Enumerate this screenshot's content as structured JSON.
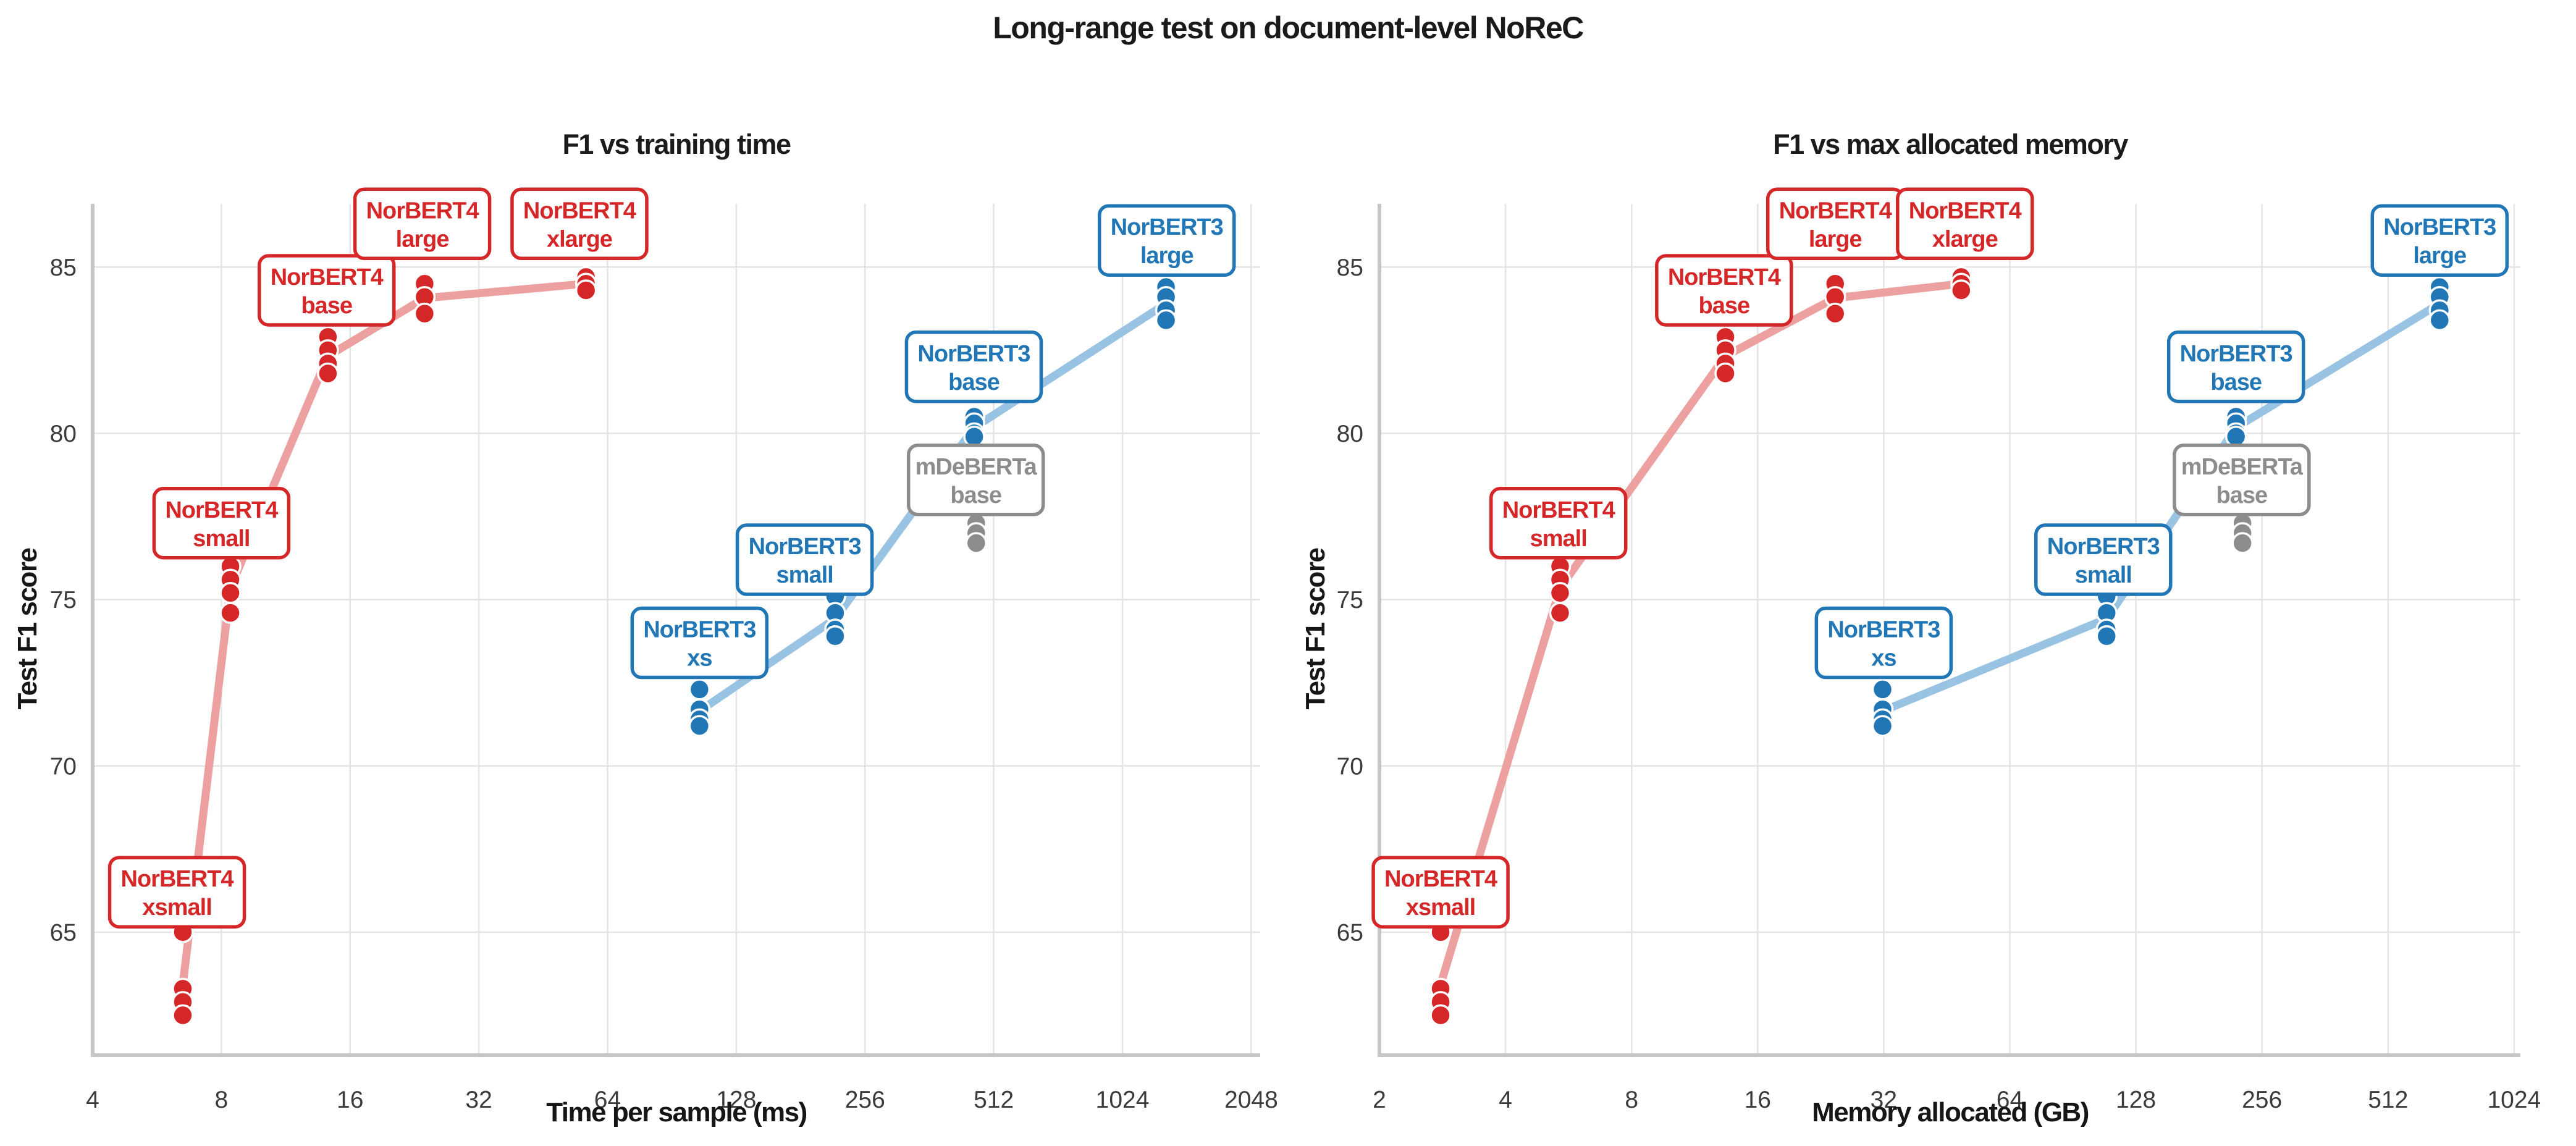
{
  "title": "Long-range test on document-level NoReC",
  "colors": {
    "norbert4": "#d62728",
    "norbert4_line": "#eda0a0",
    "norbert3": "#2176b5",
    "norbert3_line": "#99c3e2",
    "mdeberta": "#8c8c8c",
    "grid": "#e4e4e4",
    "spine": "#c6c6c6",
    "tick_text": "#3b3b3b",
    "title_text": "#1b1b1b",
    "background": "#ffffff"
  },
  "chart_data": [
    {
      "type": "scatter",
      "title": "F1 vs training time",
      "xlabel": "Time per sample (ms)",
      "ylabel": "Test F1 score",
      "x_scale": "log2",
      "x_range": [
        4,
        2150
      ],
      "y_range": [
        61.3,
        86.9
      ],
      "x_ticks": [
        4,
        8,
        16,
        32,
        64,
        128,
        256,
        512,
        1024,
        2048
      ],
      "y_ticks": [
        65,
        70,
        75,
        80,
        85
      ],
      "grid": true,
      "legend": "none",
      "series": [
        {
          "name": "NorBERT4",
          "color": "#d62728",
          "line_color": "#eda0a0",
          "connected": true,
          "clusters": [
            {
              "model": "NorBERT4 xsmall",
              "label": [
                "NorBERT4",
                "xsmall"
              ],
              "x": 6.5,
              "f1": [
                65.0,
                63.3,
                62.9,
                62.5
              ],
              "label_pos": [
                6.3,
                66.2
              ]
            },
            {
              "model": "NorBERT4 small",
              "label": [
                "NorBERT4",
                "small"
              ],
              "x": 8.4,
              "f1": [
                76.0,
                75.6,
                75.2,
                74.6
              ],
              "label_pos": [
                8.0,
                77.3
              ]
            },
            {
              "model": "NorBERT4 base",
              "label": [
                "NorBERT4",
                "base"
              ],
              "x": 14.2,
              "f1": [
                82.9,
                82.5,
                82.1,
                81.8
              ],
              "label_pos": [
                14.1,
                84.3
              ]
            },
            {
              "model": "NorBERT4 large",
              "label": [
                "NorBERT4",
                "large"
              ],
              "x": 23.9,
              "f1": [
                84.5,
                84.1,
                83.6
              ],
              "label_pos": [
                23.6,
                86.3
              ]
            },
            {
              "model": "NorBERT4 xlarge",
              "label": [
                "NorBERT4",
                "xlarge"
              ],
              "x": 57,
              "f1": [
                84.7,
                84.5,
                84.3
              ],
              "label_pos": [
                55,
                86.3
              ]
            }
          ]
        },
        {
          "name": "NorBERT3",
          "color": "#2176b5",
          "line_color": "#99c3e2",
          "connected": true,
          "clusters": [
            {
              "model": "NorBERT3 xs",
              "label": [
                "NorBERT3",
                "xs"
              ],
              "x": 105,
              "f1": [
                72.3,
                71.7,
                71.4,
                71.2
              ],
              "label_pos": [
                105,
                73.7
              ]
            },
            {
              "model": "NorBERT3 small",
              "label": [
                "NorBERT3",
                "small"
              ],
              "x": 218,
              "f1": [
                75.1,
                74.6,
                74.1,
                73.9
              ],
              "label_pos": [
                185,
                76.2
              ]
            },
            {
              "model": "NorBERT3 base",
              "label": [
                "NorBERT3",
                "base"
              ],
              "x": 461,
              "f1": [
                80.5,
                80.3,
                80.0,
                79.9
              ],
              "label_pos": [
                460,
                82.0
              ]
            },
            {
              "model": "NorBERT3 large",
              "label": [
                "NorBERT3",
                "large"
              ],
              "x": 1295,
              "f1": [
                84.4,
                84.1,
                83.7,
                83.4
              ],
              "label_pos": [
                1300,
                85.8
              ]
            }
          ]
        },
        {
          "name": "mDeBERTa",
          "color": "#8c8c8c",
          "line_color": "#8c8c8c",
          "connected": false,
          "clusters": [
            {
              "model": "mDeBERTa base",
              "label": [
                "mDeBERTa",
                "base"
              ],
              "x": 466,
              "f1": [
                77.3,
                77.0,
                76.7
              ],
              "label_pos": [
                465,
                78.6
              ]
            }
          ]
        }
      ]
    },
    {
      "type": "scatter",
      "title": "F1 vs max allocated memory",
      "xlabel": "Memory allocated (GB)",
      "ylabel": "Test F1 score",
      "x_scale": "log2",
      "x_range": [
        2,
        1060
      ],
      "y_range": [
        61.3,
        86.9
      ],
      "x_ticks": [
        2,
        4,
        8,
        16,
        32,
        64,
        128,
        256,
        512,
        1024
      ],
      "y_ticks": [
        65,
        70,
        75,
        80,
        85
      ],
      "grid": true,
      "legend": "none",
      "series": [
        {
          "name": "NorBERT4",
          "color": "#d62728",
          "line_color": "#eda0a0",
          "connected": true,
          "clusters": [
            {
              "model": "NorBERT4 xsmall",
              "label": [
                "NorBERT4",
                "xsmall"
              ],
              "x": 2.8,
              "f1": [
                65.0,
                63.3,
                62.9,
                62.5
              ],
              "label_pos": [
                2.8,
                66.2
              ]
            },
            {
              "model": "NorBERT4 small",
              "label": [
                "NorBERT4",
                "small"
              ],
              "x": 5.4,
              "f1": [
                76.0,
                75.6,
                75.2,
                74.6
              ],
              "label_pos": [
                5.35,
                77.3
              ]
            },
            {
              "model": "NorBERT4 base",
              "label": [
                "NorBERT4",
                "base"
              ],
              "x": 13.4,
              "f1": [
                82.9,
                82.5,
                82.1,
                81.8
              ],
              "label_pos": [
                13.3,
                84.3
              ]
            },
            {
              "model": "NorBERT4 large",
              "label": [
                "NorBERT4",
                "large"
              ],
              "x": 24.5,
              "f1": [
                84.5,
                84.1,
                83.6
              ],
              "label_pos": [
                24.5,
                86.3
              ]
            },
            {
              "model": "NorBERT4 xlarge",
              "label": [
                "NorBERT4",
                "xlarge"
              ],
              "x": 49,
              "f1": [
                84.7,
                84.5,
                84.3
              ],
              "label_pos": [
                50,
                86.3
              ]
            }
          ]
        },
        {
          "name": "NorBERT3",
          "color": "#2176b5",
          "line_color": "#99c3e2",
          "connected": true,
          "clusters": [
            {
              "model": "NorBERT3 xs",
              "label": [
                "NorBERT3",
                "xs"
              ],
              "x": 31.8,
              "f1": [
                72.3,
                71.7,
                71.4,
                71.2
              ],
              "label_pos": [
                32,
                73.7
              ]
            },
            {
              "model": "NorBERT3 small",
              "label": [
                "NorBERT3",
                "small"
              ],
              "x": 109,
              "f1": [
                75.1,
                74.6,
                74.1,
                73.9
              ],
              "label_pos": [
                107,
                76.2
              ]
            },
            {
              "model": "NorBERT3 base",
              "label": [
                "NorBERT3",
                "base"
              ],
              "x": 222,
              "f1": [
                80.5,
                80.3,
                80.0,
                79.9
              ],
              "label_pos": [
                222,
                82.0
              ]
            },
            {
              "model": "NorBERT3 large",
              "label": [
                "NorBERT3",
                "large"
              ],
              "x": 680,
              "f1": [
                84.4,
                84.1,
                83.7,
                83.4
              ],
              "label_pos": [
                680,
                85.8
              ]
            }
          ]
        },
        {
          "name": "mDeBERTa",
          "color": "#8c8c8c",
          "line_color": "#8c8c8c",
          "connected": false,
          "clusters": [
            {
              "model": "mDeBERTa base",
              "label": [
                "mDeBERTa",
                "base"
              ],
              "x": 230,
              "f1": [
                77.3,
                77.0,
                76.7
              ],
              "label_pos": [
                229,
                78.6
              ]
            }
          ]
        }
      ]
    }
  ]
}
